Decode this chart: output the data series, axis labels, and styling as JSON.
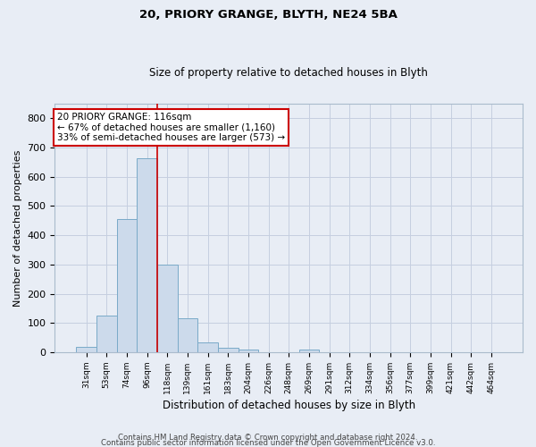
{
  "title": "20, PRIORY GRANGE, BLYTH, NE24 5BA",
  "subtitle": "Size of property relative to detached houses in Blyth",
  "xlabel": "Distribution of detached houses by size in Blyth",
  "ylabel": "Number of detached properties",
  "footer_line1": "Contains HM Land Registry data © Crown copyright and database right 2024.",
  "footer_line2": "Contains public sector information licensed under the Open Government Licence v3.0.",
  "bar_color": "#ccdaeb",
  "bar_edge_color": "#7aaac8",
  "grid_color": "#c5cfe0",
  "background_color": "#e8edf5",
  "axes_bg_color": "#e8edf5",
  "vline_color": "#cc0000",
  "annotation_box_edgecolor": "#cc0000",
  "annotation_line1": "20 PRIORY GRANGE: 116sqm",
  "annotation_line2": "← 67% of detached houses are smaller (1,160)",
  "annotation_line3": "33% of semi-detached houses are larger (573) →",
  "categories": [
    "31sqm",
    "53sqm",
    "74sqm",
    "96sqm",
    "118sqm",
    "139sqm",
    "161sqm",
    "183sqm",
    "204sqm",
    "226sqm",
    "248sqm",
    "269sqm",
    "291sqm",
    "312sqm",
    "334sqm",
    "356sqm",
    "377sqm",
    "399sqm",
    "421sqm",
    "442sqm",
    "464sqm"
  ],
  "values": [
    18,
    125,
    455,
    665,
    300,
    115,
    33,
    14,
    10,
    0,
    0,
    8,
    0,
    0,
    0,
    0,
    0,
    0,
    0,
    0,
    0
  ],
  "vline_position": 3.5,
  "ylim": [
    0,
    850
  ],
  "yticks": [
    0,
    100,
    200,
    300,
    400,
    500,
    600,
    700,
    800
  ]
}
